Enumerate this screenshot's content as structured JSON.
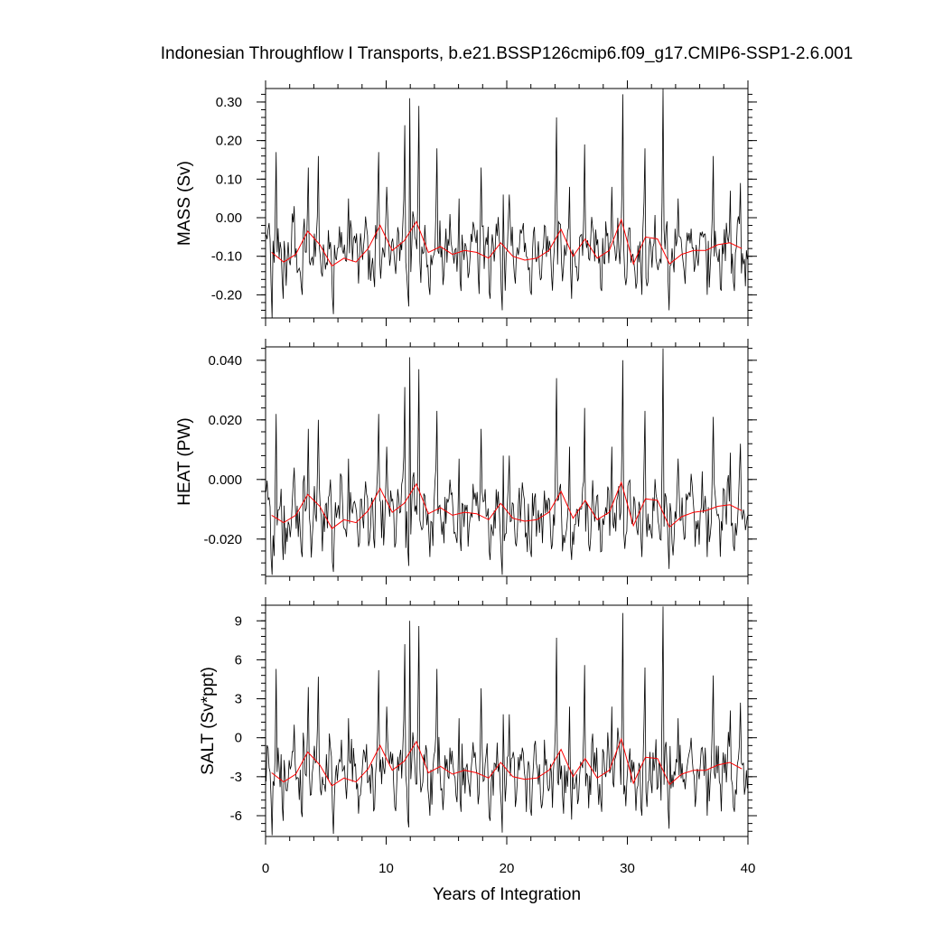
{
  "chart_data": {
    "type": "line",
    "title": "Indonesian Throughflow I Transports, b.e21.BSSP126cmip6.f09_g17.CMIP6-SSP1-2.6.001",
    "xlabel": "Years of Integration",
    "xlim": [
      0,
      40
    ],
    "xticks": [
      0,
      10,
      20,
      30,
      40
    ],
    "tick_labels_x": [
      "0",
      "10",
      "20",
      "30",
      "40"
    ],
    "colors": {
      "monthly": "#000000",
      "annual": "#ff0000"
    },
    "annual_x": [
      0.5,
      1.5,
      2.5,
      3.5,
      4.5,
      5.5,
      6.5,
      7.5,
      8.5,
      9.5,
      10.5,
      11.5,
      12.5,
      13.5,
      14.5,
      15.5,
      16.5,
      17.5,
      18.5,
      19.5,
      20.5,
      21.5,
      22.5,
      23.5,
      24.5,
      25.5,
      26.5,
      27.5,
      28.5,
      29.5,
      30.5,
      31.5,
      32.5,
      33.5,
      34.5,
      35.5,
      36.5,
      37.5,
      38.5,
      39.5
    ],
    "panels": [
      {
        "ylabel": "MASS (Sv)",
        "ylim": [
          -0.26,
          0.335
        ],
        "yticks": [
          0.3,
          0.2,
          0.1,
          0.0,
          -0.1,
          -0.2
        ],
        "tick_labels_y": [
          "0.30",
          "0.20",
          "0.10",
          "0.00",
          "-0.10",
          "-0.20"
        ],
        "minor_step": 0.02,
        "annual_values": [
          -0.09,
          -0.115,
          -0.095,
          -0.035,
          -0.07,
          -0.125,
          -0.105,
          -0.115,
          -0.08,
          -0.02,
          -0.085,
          -0.06,
          -0.01,
          -0.09,
          -0.075,
          -0.095,
          -0.085,
          -0.09,
          -0.105,
          -0.065,
          -0.1,
          -0.11,
          -0.105,
          -0.085,
          -0.03,
          -0.1,
          -0.055,
          -0.105,
          -0.085,
          -0.005,
          -0.12,
          -0.05,
          -0.055,
          -0.12,
          -0.095,
          -0.085,
          -0.085,
          -0.07,
          -0.065,
          -0.08
        ],
        "monthly_peaks": [
          [
            0.8,
            0.17
          ],
          [
            2.3,
            0.03
          ],
          [
            3.5,
            0.13
          ],
          [
            4.3,
            0.16
          ],
          [
            6.8,
            0.05
          ],
          [
            9.3,
            0.17
          ],
          [
            10.0,
            0.08
          ],
          [
            11.5,
            0.24
          ],
          [
            11.9,
            0.31
          ],
          [
            12.7,
            0.29
          ],
          [
            14.2,
            0.18
          ],
          [
            16.0,
            0.05
          ],
          [
            17.8,
            0.13
          ],
          [
            19.7,
            0.06
          ],
          [
            20.2,
            0.06
          ],
          [
            24.1,
            0.26
          ],
          [
            25.2,
            0.08
          ],
          [
            26.4,
            0.19
          ],
          [
            28.7,
            0.08
          ],
          [
            29.6,
            0.32
          ],
          [
            31.4,
            0.18
          ],
          [
            32.9,
            0.34
          ],
          [
            34.2,
            0.05
          ],
          [
            36.5,
            0.07
          ],
          [
            37.1,
            0.16
          ],
          [
            38.5,
            0.07
          ],
          [
            39.3,
            0.09
          ]
        ],
        "monthly_troughs": [
          [
            0.5,
            -0.26
          ],
          [
            1.4,
            -0.21
          ],
          [
            3.0,
            -0.2
          ],
          [
            5.6,
            -0.25
          ],
          [
            9.0,
            -0.18
          ],
          [
            11.8,
            -0.23
          ],
          [
            13.6,
            -0.2
          ],
          [
            16.2,
            -0.19
          ],
          [
            18.6,
            -0.21
          ],
          [
            19.6,
            -0.24
          ],
          [
            22.0,
            -0.2
          ],
          [
            25.3,
            -0.21
          ],
          [
            27.8,
            -0.19
          ],
          [
            31.2,
            -0.2
          ],
          [
            33.4,
            -0.24
          ],
          [
            36.6,
            -0.2
          ],
          [
            38.8,
            -0.19
          ]
        ],
        "baseline": -0.085,
        "amplitude": 0.07
      },
      {
        "ylabel": "HEAT (PW)",
        "ylim": [
          -0.0325,
          0.0445
        ],
        "yticks": [
          0.04,
          0.02,
          0.0,
          -0.02
        ],
        "tick_labels_y": [
          "0.040",
          "0.020",
          "0.000",
          "-0.020"
        ],
        "minor_step": 0.004,
        "annual_values": [
          -0.012,
          -0.0145,
          -0.012,
          -0.005,
          -0.009,
          -0.0165,
          -0.0135,
          -0.0145,
          -0.0105,
          -0.003,
          -0.011,
          -0.008,
          -0.0015,
          -0.0115,
          -0.0095,
          -0.012,
          -0.011,
          -0.0115,
          -0.0135,
          -0.008,
          -0.013,
          -0.014,
          -0.0135,
          -0.011,
          -0.004,
          -0.013,
          -0.007,
          -0.0135,
          -0.011,
          -0.001,
          -0.0155,
          -0.0065,
          -0.007,
          -0.016,
          -0.0125,
          -0.011,
          -0.0105,
          -0.009,
          -0.0085,
          -0.0105
        ],
        "monthly_peaks": [
          [
            0.8,
            0.022
          ],
          [
            2.3,
            0.004
          ],
          [
            3.5,
            0.017
          ],
          [
            4.3,
            0.02
          ],
          [
            6.8,
            0.007
          ],
          [
            9.3,
            0.022
          ],
          [
            10.0,
            0.011
          ],
          [
            11.5,
            0.031
          ],
          [
            11.9,
            0.041
          ],
          [
            12.7,
            0.037
          ],
          [
            14.2,
            0.023
          ],
          [
            16.0,
            0.007
          ],
          [
            17.8,
            0.017
          ],
          [
            19.7,
            0.008
          ],
          [
            20.2,
            0.008
          ],
          [
            24.1,
            0.034
          ],
          [
            25.2,
            0.011
          ],
          [
            26.4,
            0.024
          ],
          [
            28.7,
            0.011
          ],
          [
            29.6,
            0.04
          ],
          [
            31.4,
            0.023
          ],
          [
            32.9,
            0.044
          ],
          [
            34.2,
            0.007
          ],
          [
            36.5,
            0.009
          ],
          [
            37.1,
            0.021
          ],
          [
            38.5,
            0.009
          ],
          [
            39.3,
            0.012
          ]
        ],
        "monthly_troughs": [
          [
            0.5,
            -0.032
          ],
          [
            1.4,
            -0.027
          ],
          [
            3.0,
            -0.026
          ],
          [
            5.6,
            -0.031
          ],
          [
            9.0,
            -0.023
          ],
          [
            11.8,
            -0.029
          ],
          [
            13.6,
            -0.026
          ],
          [
            16.2,
            -0.024
          ],
          [
            18.6,
            -0.027
          ],
          [
            19.6,
            -0.032
          ],
          [
            22.0,
            -0.026
          ],
          [
            25.3,
            -0.027
          ],
          [
            27.8,
            -0.024
          ],
          [
            31.2,
            -0.026
          ],
          [
            33.4,
            -0.03
          ],
          [
            36.6,
            -0.026
          ],
          [
            38.8,
            -0.024
          ]
        ],
        "baseline": -0.0115,
        "amplitude": 0.009
      },
      {
        "ylabel": "SALT (Sv*ppt)",
        "ylim": [
          -7.6,
          10.2
        ],
        "yticks": [
          9,
          6,
          3,
          0,
          -3,
          -6
        ],
        "tick_labels_y": [
          "9",
          "6",
          "3",
          "0",
          "-3",
          "-6"
        ],
        "minor_step": 0.6,
        "annual_values": [
          -2.7,
          -3.4,
          -2.8,
          -1.1,
          -2.1,
          -3.7,
          -3.1,
          -3.4,
          -2.4,
          -0.6,
          -2.5,
          -1.8,
          -0.3,
          -2.7,
          -2.2,
          -2.8,
          -2.5,
          -2.7,
          -3.1,
          -1.9,
          -3.0,
          -3.2,
          -3.1,
          -2.5,
          -0.9,
          -3.0,
          -1.6,
          -3.1,
          -2.5,
          -0.1,
          -3.5,
          -1.5,
          -1.6,
          -3.6,
          -2.8,
          -2.5,
          -2.5,
          -2.1,
          -1.9,
          -2.4
        ],
        "monthly_peaks": [
          [
            0.8,
            5.3
          ],
          [
            2.3,
            1.0
          ],
          [
            3.5,
            3.9
          ],
          [
            4.3,
            4.7
          ],
          [
            6.8,
            1.5
          ],
          [
            9.3,
            5.2
          ],
          [
            10.0,
            2.4
          ],
          [
            11.5,
            7.2
          ],
          [
            11.9,
            9.0
          ],
          [
            12.7,
            8.6
          ],
          [
            14.2,
            5.3
          ],
          [
            16.0,
            1.5
          ],
          [
            17.8,
            3.8
          ],
          [
            19.7,
            1.8
          ],
          [
            20.2,
            1.8
          ],
          [
            24.1,
            7.7
          ],
          [
            25.2,
            2.4
          ],
          [
            26.4,
            5.6
          ],
          [
            28.7,
            2.4
          ],
          [
            29.6,
            9.6
          ],
          [
            31.4,
            5.4
          ],
          [
            32.9,
            10.1
          ],
          [
            34.2,
            1.5
          ],
          [
            36.5,
            2.1
          ],
          [
            37.1,
            4.8
          ],
          [
            38.5,
            2.1
          ],
          [
            39.3,
            2.7
          ]
        ],
        "monthly_troughs": [
          [
            0.5,
            -7.5
          ],
          [
            1.4,
            -6.4
          ],
          [
            3.0,
            -6.1
          ],
          [
            5.6,
            -7.4
          ],
          [
            9.0,
            -5.4
          ],
          [
            11.8,
            -6.9
          ],
          [
            13.6,
            -6.0
          ],
          [
            16.2,
            -5.7
          ],
          [
            18.6,
            -6.4
          ],
          [
            19.6,
            -7.3
          ],
          [
            22.0,
            -6.0
          ],
          [
            25.3,
            -6.3
          ],
          [
            27.8,
            -5.7
          ],
          [
            31.2,
            -6.0
          ],
          [
            33.4,
            -7.0
          ],
          [
            36.6,
            -6.0
          ],
          [
            38.8,
            -5.7
          ]
        ],
        "baseline": -2.6,
        "amplitude": 2.1
      }
    ]
  }
}
